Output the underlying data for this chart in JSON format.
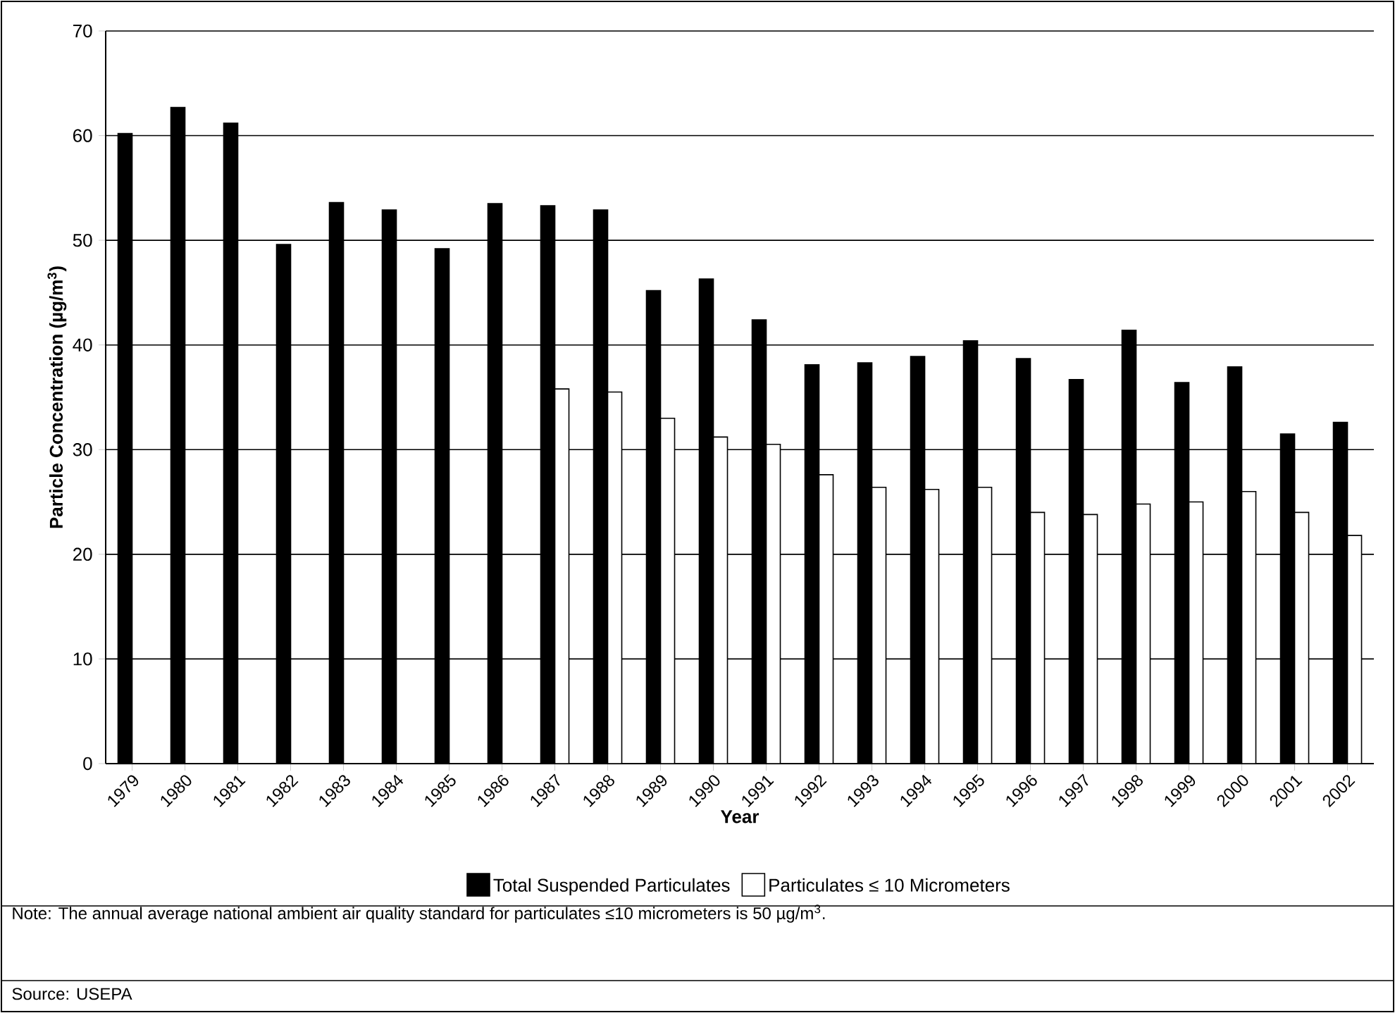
{
  "chart_data": {
    "type": "bar",
    "xlabel": "Year",
    "ylabel": "Particle Concentration (µg/m$^{3}$)",
    "categories": [
      "1979",
      "1980",
      "1981",
      "1982",
      "1983",
      "1984",
      "1985",
      "1986",
      "1987",
      "1988",
      "1989",
      "1990",
      "1991",
      "1992",
      "1993",
      "1994",
      "1995",
      "1996",
      "1997",
      "1998",
      "1999",
      "2000",
      "2001",
      "2002"
    ],
    "series": [
      {
        "name": "Total Suspended Particulates",
        "color": "#000000",
        "values": [
          60.2,
          62.7,
          61.2,
          49.6,
          53.6,
          52.9,
          49.2,
          53.5,
          53.3,
          52.9,
          45.2,
          46.3,
          42.4,
          38.1,
          38.3,
          38.9,
          40.4,
          38.7,
          36.7,
          41.4,
          36.4,
          37.9,
          31.5,
          32.6
        ]
      },
      {
        "name": "Particulates ≤ 10 Micrometers",
        "color": "#ffffff",
        "values": [
          null,
          null,
          null,
          null,
          null,
          null,
          null,
          null,
          35.8,
          35.5,
          33.0,
          31.2,
          30.5,
          27.6,
          26.4,
          26.2,
          26.4,
          24.0,
          23.8,
          24.8,
          25.0,
          26.0,
          24.0,
          21.8
        ]
      }
    ],
    "ylim": [
      0,
      70
    ],
    "yticks": [
      0,
      10,
      20,
      30,
      40,
      50,
      60,
      70
    ],
    "grid": "y",
    "legend": "bottom",
    "annotations": [
      "Note:  The annual average national ambient air quality standard for particulates ≤10 micrometers is 50 µg/m$^{3}$.",
      "Source:  USEPA"
    ]
  }
}
